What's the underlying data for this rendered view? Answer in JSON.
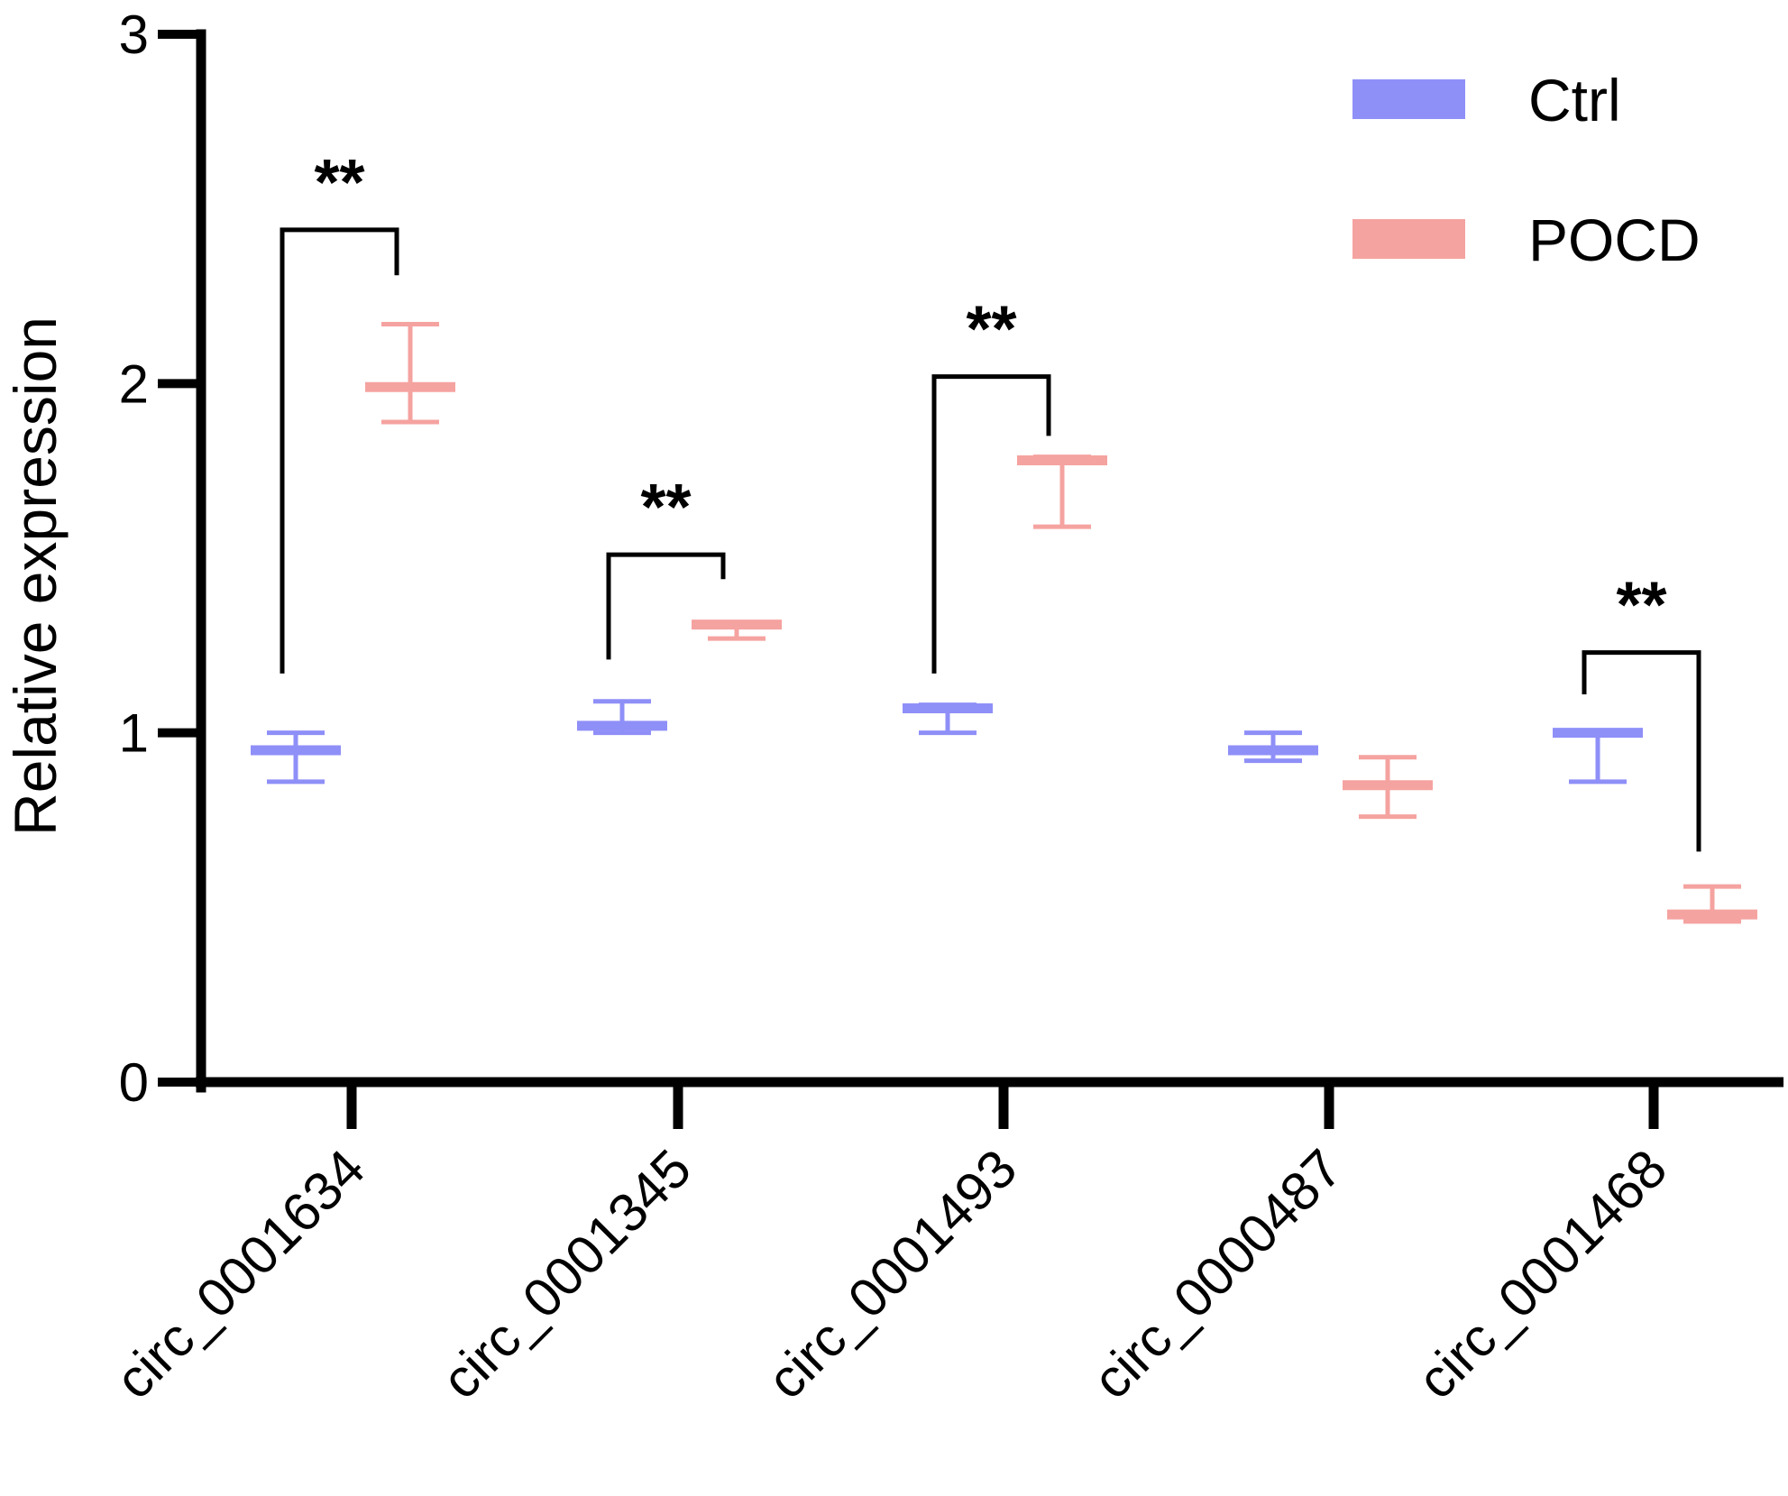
{
  "chart_data": {
    "type": "scatter",
    "title": "",
    "xlabel": "",
    "ylabel": "Relative expression",
    "ylim": [
      0,
      3
    ],
    "yticks": [
      0,
      1,
      2,
      3
    ],
    "categories": [
      "circ_0001634",
      "circ_0001345",
      "circ_0001493",
      "circ_0000487",
      "circ_0001468"
    ],
    "series": [
      {
        "name": "Ctrl",
        "color": "#8f8ff8",
        "mean": [
          0.95,
          1.02,
          1.07,
          0.95,
          1.0
        ],
        "upper": [
          1.0,
          1.09,
          1.08,
          1.0,
          1.0
        ],
        "lower": [
          0.86,
          1.0,
          1.0,
          0.92,
          0.86
        ]
      },
      {
        "name": "POCD",
        "color": "#f5a3a0",
        "mean": [
          1.99,
          1.31,
          1.78,
          0.85,
          0.48
        ],
        "upper": [
          2.17,
          1.31,
          1.79,
          0.93,
          0.56
        ],
        "lower": [
          1.89,
          1.27,
          1.59,
          0.76,
          0.46
        ]
      }
    ],
    "significance": [
      {
        "category": "circ_0001634",
        "label": "**",
        "bracket_y": 2.44,
        "left_y": 1.17,
        "right_y": 2.31
      },
      {
        "category": "circ_0001345",
        "label": "**",
        "bracket_y": 1.51,
        "left_y": 1.21,
        "right_y": 1.44
      },
      {
        "category": "circ_0001493",
        "label": "**",
        "bracket_y": 2.02,
        "left_y": 1.17,
        "right_y": 1.85
      },
      {
        "category": "circ_0001468",
        "label": "**",
        "bracket_y": 1.23,
        "left_y": 1.11,
        "right_y": 0.66
      }
    ],
    "legend": {
      "position": "top-right",
      "entries": [
        "Ctrl",
        "POCD"
      ]
    }
  }
}
